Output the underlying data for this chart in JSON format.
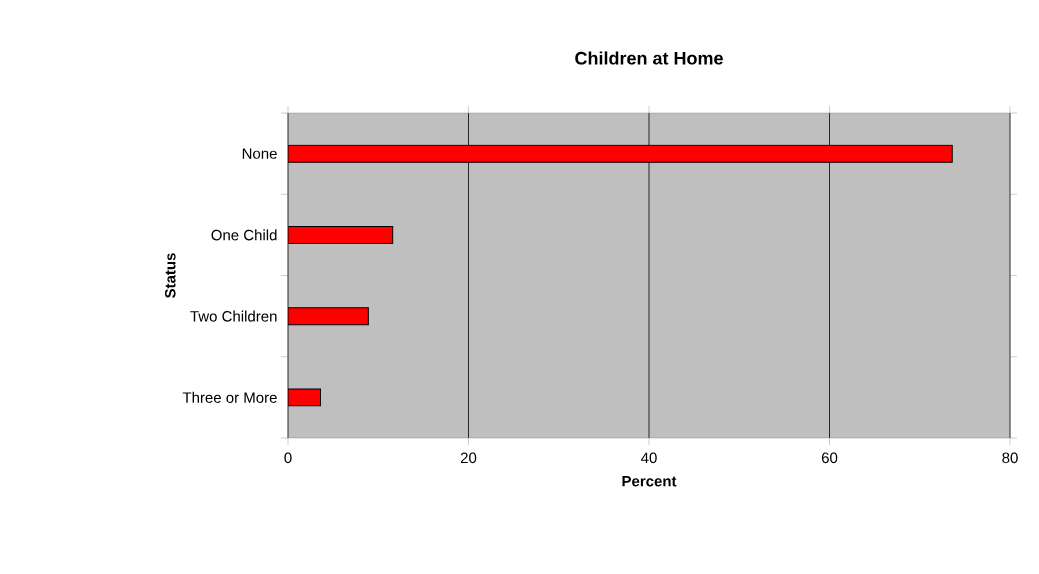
{
  "chart_data": {
    "type": "bar",
    "orientation": "horizontal",
    "title": "Children at Home",
    "xlabel": "Percent",
    "ylabel": "Status",
    "categories": [
      "None",
      "One Child",
      "Two Children",
      "Three or More"
    ],
    "values": [
      73.6,
      11.6,
      8.9,
      3.6
    ],
    "color": "#ff0000",
    "xlim": [
      0,
      80
    ],
    "xticks": [
      0,
      20,
      40,
      60,
      80
    ],
    "grid": "x"
  }
}
